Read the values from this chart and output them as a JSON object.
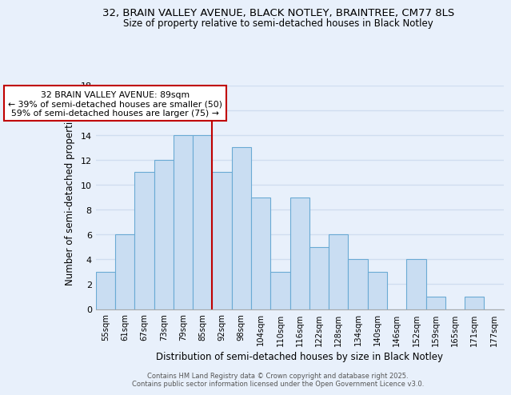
{
  "title_line1": "32, BRAIN VALLEY AVENUE, BLACK NOTLEY, BRAINTREE, CM77 8LS",
  "title_line2": "Size of property relative to semi-detached houses in Black Notley",
  "xlabel": "Distribution of semi-detached houses by size in Black Notley",
  "ylabel": "Number of semi-detached properties",
  "categories": [
    "55sqm",
    "61sqm",
    "67sqm",
    "73sqm",
    "79sqm",
    "85sqm",
    "92sqm",
    "98sqm",
    "104sqm",
    "110sqm",
    "116sqm",
    "122sqm",
    "128sqm",
    "134sqm",
    "140sqm",
    "146sqm",
    "152sqm",
    "159sqm",
    "165sqm",
    "171sqm",
    "177sqm"
  ],
  "values": [
    3,
    6,
    11,
    12,
    14,
    14,
    11,
    13,
    9,
    3,
    9,
    5,
    6,
    4,
    3,
    0,
    4,
    1,
    0,
    1,
    0
  ],
  "bar_color": "#c9ddf2",
  "bar_edge_color": "#6aaad4",
  "subject_line_color": "#c00000",
  "annotation_title": "32 BRAIN VALLEY AVENUE: 89sqm",
  "annotation_line2": "← 39% of semi-detached houses are smaller (50)",
  "annotation_line3": "59% of semi-detached houses are larger (75) →",
  "annotation_box_color": "#ffffff",
  "annotation_box_edge": "#c00000",
  "ylim": [
    0,
    18
  ],
  "yticks": [
    0,
    2,
    4,
    6,
    8,
    10,
    12,
    14,
    16,
    18
  ],
  "footer_line1": "Contains HM Land Registry data © Crown copyright and database right 2025.",
  "footer_line2": "Contains public sector information licensed under the Open Government Licence v3.0.",
  "background_color": "#e8f0fb",
  "grid_color": "#d0ddf0"
}
